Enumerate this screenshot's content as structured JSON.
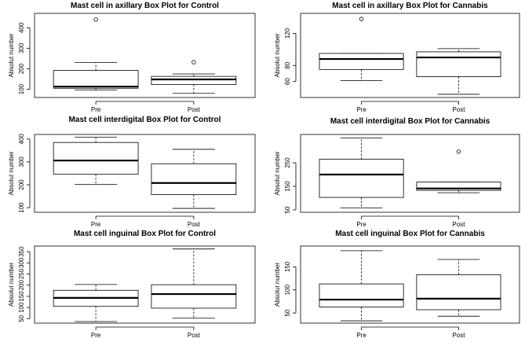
{
  "chart_data": [
    {
      "type": "box",
      "title": "Mast cell in axillary Box Plot for Control",
      "ylabel": "Absolut number",
      "categories": [
        "Pre",
        "Post"
      ],
      "yticks": [
        100,
        200,
        300,
        400
      ],
      "ylim": [
        60,
        470
      ],
      "boxes": [
        {
          "category": "Pre",
          "lower_whisker": 97,
          "q1": 105,
          "median": 113,
          "q3": 192,
          "upper_whisker": 230,
          "outliers": [
            440
          ]
        },
        {
          "category": "Post",
          "lower_whisker": 80,
          "q1": 123,
          "median": 148,
          "q3": 163,
          "upper_whisker": 175,
          "outliers": [
            232
          ]
        }
      ]
    },
    {
      "type": "box",
      "title": "Mast cell in axillary Box Plot for Cannabis",
      "ylabel": "Absolut number",
      "categories": [
        "Pre",
        "Post"
      ],
      "yticks": [
        60,
        80,
        120
      ],
      "ylim": [
        40,
        145
      ],
      "boxes": [
        {
          "category": "Pre",
          "lower_whisker": 61,
          "q1": 75,
          "median": 88,
          "q3": 95,
          "upper_whisker": 95,
          "outliers": [
            138
          ]
        },
        {
          "category": "Post",
          "lower_whisker": 44,
          "q1": 66,
          "median": 90,
          "q3": 97,
          "upper_whisker": 101,
          "outliers": []
        }
      ]
    },
    {
      "type": "box",
      "title": "Mast cell interdigital Box Plot for Control",
      "ylabel": "Absolut number",
      "categories": [
        "Pre",
        "Post"
      ],
      "yticks": [
        100,
        200,
        300,
        400
      ],
      "ylim": [
        80,
        420
      ],
      "boxes": [
        {
          "category": "Pre",
          "lower_whisker": 202,
          "q1": 246,
          "median": 306,
          "q3": 385,
          "upper_whisker": 408,
          "outliers": []
        },
        {
          "category": "Post",
          "lower_whisker": 97,
          "q1": 157,
          "median": 208,
          "q3": 292,
          "upper_whisker": 355,
          "outliers": []
        }
      ]
    },
    {
      "type": "box",
      "title": "Mast cell interdigital Box Plot for Cannabis",
      "ylabel": "Absolut number",
      "categories": [
        "Pre",
        "Post"
      ],
      "yticks": [
        50,
        150,
        250
      ],
      "ylim": [
        40,
        370
      ],
      "boxes": [
        {
          "category": "Pre",
          "lower_whisker": 58,
          "q1": 103,
          "median": 200,
          "q3": 265,
          "upper_whisker": 355,
          "outliers": []
        },
        {
          "category": "Post",
          "lower_whisker": 123,
          "q1": 133,
          "median": 141,
          "q3": 168,
          "upper_whisker": 168,
          "outliers": [
            297
          ]
        }
      ]
    },
    {
      "type": "box",
      "title": "Mast cell inguinal Box Plot for Control",
      "ylabel": "Absolut number",
      "categories": [
        "Pre",
        "Post"
      ],
      "yticks": [
        50,
        100,
        150,
        200,
        250,
        300,
        350
      ],
      "ylim": [
        30,
        375
      ],
      "boxes": [
        {
          "category": "Pre",
          "lower_whisker": 37,
          "q1": 105,
          "median": 143,
          "q3": 177,
          "upper_whisker": 203,
          "outliers": []
        },
        {
          "category": "Post",
          "lower_whisker": 52,
          "q1": 97,
          "median": 160,
          "q3": 202,
          "upper_whisker": 362,
          "outliers": []
        }
      ]
    },
    {
      "type": "box",
      "title": "Mast cell inguinal Box Plot for Cannabis",
      "ylabel": "Absolut number",
      "categories": [
        "Pre",
        "Post"
      ],
      "yticks": [
        50,
        100,
        150
      ],
      "ylim": [
        28,
        195
      ],
      "boxes": [
        {
          "category": "Pre",
          "lower_whisker": 33,
          "q1": 63,
          "median": 79,
          "q3": 113,
          "upper_whisker": 185,
          "outliers": []
        },
        {
          "category": "Post",
          "lower_whisker": 43,
          "q1": 57,
          "median": 81,
          "q3": 133,
          "upper_whisker": 166,
          "outliers": []
        }
      ]
    }
  ]
}
